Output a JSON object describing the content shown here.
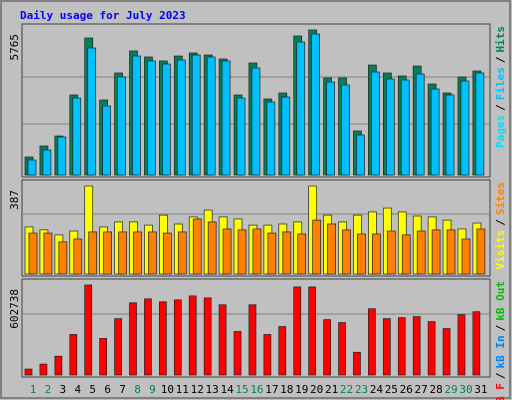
{
  "chart_data": [
    {
      "type": "bar",
      "title": "Daily usage for July 2023",
      "ylim": [
        0,
        5765
      ],
      "yticks": [
        5765
      ],
      "legend_separator": "/",
      "series": [
        {
          "name": "Pages",
          "color": "#00E0FF",
          "values": null
        },
        {
          "name": "Files",
          "color": "#00C0FF",
          "values": [
            596,
            994,
            1511,
            3061,
            5050,
            2743,
            3896,
            4731,
            4533,
            4413,
            4572,
            4771,
            4692,
            4533,
            3061,
            4254,
            2902,
            3101,
            5288,
            5606,
            3698,
            3578,
            1590,
            4095,
            3817,
            3777,
            4016,
            3419,
            3181,
            3737,
            4056
          ]
        },
        {
          "name": "Hits",
          "color": "#00805C",
          "values": [
            716,
            1153,
            1551,
            3181,
            5447,
            2982,
            4056,
            4930,
            4692,
            4533,
            4731,
            4851,
            4771,
            4612,
            3181,
            4453,
            3022,
            3260,
            5527,
            5765,
            3857,
            3857,
            1749,
            4374,
            4056,
            3936,
            4334,
            3618,
            3260,
            3896,
            4135
          ]
        }
      ]
    },
    {
      "type": "bar",
      "ylim": [
        0,
        387
      ],
      "yticks": [
        387
      ],
      "legend_separator": "/",
      "series": [
        {
          "name": "Visits",
          "color": "#FFFF00",
          "values": [
            207,
            194,
            172,
            189,
            387,
            207,
            229,
            229,
            215,
            259,
            220,
            251,
            281,
            251,
            242,
            215,
            215,
            220,
            229,
            387,
            259,
            229,
            259,
            273,
            290,
            273,
            255,
            251,
            237,
            198,
            224
          ]
        },
        {
          "name": "Sites",
          "color": "#FF8000",
          "values": [
            180,
            180,
            141,
            154,
            185,
            185,
            185,
            185,
            185,
            180,
            185,
            242,
            229,
            198,
            194,
            198,
            180,
            185,
            176,
            237,
            220,
            194,
            176,
            176,
            189,
            172,
            189,
            194,
            194,
            154,
            198
          ]
        }
      ]
    },
    {
      "type": "bar",
      "ylim": [
        0,
        602738
      ],
      "yticks": [
        602738
      ],
      "legend_separator": "/",
      "categories": [
        "1",
        "2",
        "3",
        "4",
        "5",
        "6",
        "7",
        "8",
        "9",
        "10",
        "11",
        "12",
        "13",
        "14",
        "15",
        "16",
        "17",
        "18",
        "19",
        "20",
        "21",
        "22",
        "23",
        "24",
        "25",
        "26",
        "27",
        "28",
        "29",
        "30",
        "31"
      ],
      "weekend": [
        true,
        true,
        false,
        false,
        false,
        false,
        false,
        true,
        true,
        false,
        false,
        false,
        false,
        false,
        true,
        true,
        false,
        false,
        false,
        false,
        false,
        true,
        true,
        false,
        false,
        false,
        false,
        false,
        true,
        true,
        false
      ],
      "series": [
        {
          "name": "kB F",
          "color": "#FF0000",
          "values": [
            39741,
            72859,
            125847,
            271564,
            602738,
            245070,
            377540,
            483516,
            510010,
            490139,
            503386,
            529880,
            516633,
            470269,
            291434,
            470269,
            271564,
            324552,
            589492,
            589492,
            370916,
            351046,
            152341,
            443775,
            377540,
            384163,
            390787,
            357669,
            311305,
            404034,
            423904
          ]
        },
        {
          "name": "kB In",
          "color": "#0080FF",
          "values": null
        },
        {
          "name": "kB Out",
          "color": "#00C000",
          "values": null
        }
      ]
    }
  ]
}
